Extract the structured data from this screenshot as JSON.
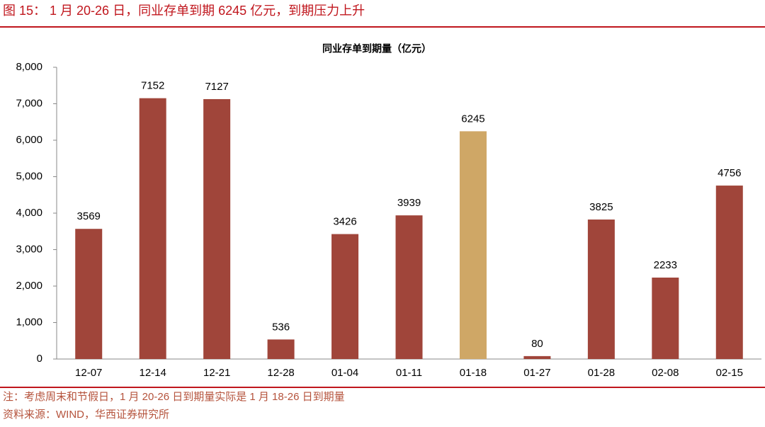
{
  "header": {
    "title": "图 15： 1 月 20-26 日，同业存单到期 6245 亿元，到期压力上升"
  },
  "chart_data": {
    "type": "bar",
    "title": "同业存单到期量（亿元）",
    "categories": [
      "12-07",
      "12-14",
      "12-21",
      "12-28",
      "01-04",
      "01-11",
      "01-18",
      "01-27",
      "01-28",
      "02-08",
      "02-15"
    ],
    "values": [
      3569,
      7152,
      7127,
      536,
      3426,
      3939,
      6245,
      80,
      3825,
      2233,
      4756
    ],
    "colors": [
      "#a0453a",
      "#a0453a",
      "#a0453a",
      "#a0453a",
      "#a0453a",
      "#a0453a",
      "#cfa766",
      "#a0453a",
      "#a0453a",
      "#a0453a",
      "#a0453a"
    ],
    "ylim": [
      0,
      8000
    ],
    "yticks": [
      0,
      {
        "value": 1000,
        "label": "1,000"
      },
      {
        "value": 2000,
        "label": "2,000"
      },
      {
        "value": 3000,
        "label": "3,000"
      },
      {
        "value": 4000,
        "label": "4,000"
      },
      {
        "value": 5000,
        "label": "5,000"
      },
      {
        "value": 6000,
        "label": "6,000"
      },
      {
        "value": 7000,
        "label": "7,000"
      },
      {
        "value": 8000,
        "label": "8,000"
      }
    ],
    "grid": false
  },
  "notes": [
    "注：考虑周末和节假日，1 月 20-26 日到期量实际是 1 月 18-26 日到期量",
    "资料来源：WIND，华西证券研究所"
  ]
}
